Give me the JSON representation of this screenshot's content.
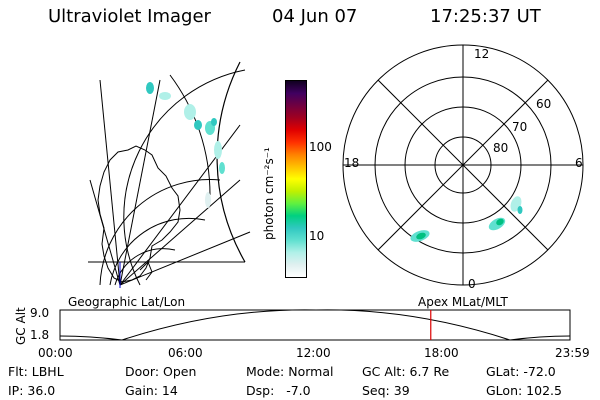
{
  "header": {
    "title": "Ultraviolet Imager",
    "date": "04 Jun 07",
    "time": "17:25:37 UT"
  },
  "colorbar": {
    "unit_label": "photon cm⁻²s⁻¹",
    "tick_labels": [
      "100",
      "10"
    ],
    "colors": [
      "#ffffff",
      "#e0f0f0",
      "#b0f0e8",
      "#60e0d0",
      "#30c8c0",
      "#00d080",
      "#60f040",
      "#c0f000",
      "#ffff00",
      "#ffc000",
      "#ff8000",
      "#ff3000",
      "#e00000",
      "#a00020",
      "#700040",
      "#400060",
      "#100020"
    ]
  },
  "polar_map": {
    "mlt_labels": {
      "top": "12",
      "left": "18",
      "right": "6",
      "bottom": "0"
    },
    "lat_labels": [
      "60",
      "70",
      "80"
    ]
  },
  "geo_label": "Geographic Lat/Lon",
  "apex_label": "Apex MLat/MLT",
  "altitude_plot": {
    "ylabel": "GC Alt",
    "y_ticks": [
      "9.0",
      "1.8"
    ],
    "x_ticks": [
      "00:00",
      "06:00",
      "12:00",
      "18:00",
      "23:59"
    ],
    "marker_color": "#dd0000",
    "current_time_fraction": 0.727
  },
  "footer": {
    "filter": "Flt: LBHL",
    "door": "Door: Open",
    "mode": "Mode: Normal",
    "gc_alt": "GC Alt: 6.7 Re",
    "glat": "GLat: -72.0",
    "ip": "IP: 36.0",
    "gain": "Gain: 14",
    "dsp": "Dsp:   -7.0",
    "seq": "Seq: 39",
    "glon": "GLon: 102.5"
  }
}
